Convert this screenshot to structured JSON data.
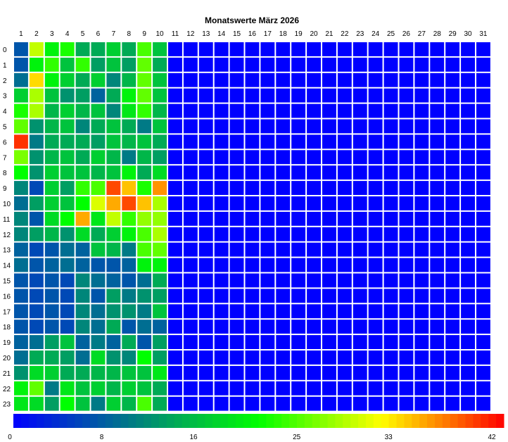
{
  "chart_data": {
    "type": "heatmap",
    "title": "Monatswerte März 2026",
    "x_categories": [
      "1",
      "2",
      "3",
      "4",
      "5",
      "6",
      "7",
      "8",
      "9",
      "10",
      "11",
      "12",
      "13",
      "14",
      "15",
      "16",
      "17",
      "18",
      "19",
      "20",
      "21",
      "22",
      "23",
      "24",
      "25",
      "26",
      "27",
      "28",
      "29",
      "30",
      "31"
    ],
    "y_categories": [
      "0",
      "1",
      "2",
      "3",
      "4",
      "5",
      "6",
      "7",
      "8",
      "9",
      "10",
      "11",
      "12",
      "13",
      "14",
      "15",
      "16",
      "17",
      "18",
      "19",
      "20",
      "21",
      "22",
      "23"
    ],
    "value_range": [
      0,
      42
    ],
    "colorbar_ticks": [
      0,
      8,
      16,
      25,
      33,
      42
    ],
    "colorscale": [
      "#0000ff",
      "#008080",
      "#00ff00",
      "#ffff00",
      "#ff0000"
    ],
    "grid": true,
    "values": [
      [
        7,
        29,
        20,
        22,
        14,
        14,
        17,
        14,
        24,
        16,
        0,
        0,
        0,
        0,
        0,
        0,
        0,
        0,
        0,
        0,
        0,
        0,
        0,
        0,
        0,
        0,
        0,
        0,
        0,
        0,
        0
      ],
      [
        7,
        20,
        23,
        16,
        23,
        13,
        16,
        13,
        25,
        14,
        0,
        0,
        0,
        0,
        0,
        0,
        0,
        0,
        0,
        0,
        0,
        0,
        0,
        0,
        0,
        0,
        0,
        0,
        0,
        0,
        0
      ],
      [
        9,
        33,
        20,
        17,
        14,
        17,
        11,
        15,
        25,
        16,
        0,
        0,
        0,
        0,
        0,
        0,
        0,
        0,
        0,
        0,
        0,
        0,
        0,
        0,
        0,
        0,
        0,
        0,
        0,
        0,
        0
      ],
      [
        17,
        28,
        16,
        12,
        13,
        8,
        14,
        20,
        25,
        16,
        0,
        0,
        0,
        0,
        0,
        0,
        0,
        0,
        0,
        0,
        0,
        0,
        0,
        0,
        0,
        0,
        0,
        0,
        0,
        0,
        0
      ],
      [
        22,
        28,
        15,
        17,
        15,
        16,
        11,
        19,
        23,
        15,
        0,
        0,
        0,
        0,
        0,
        0,
        0,
        0,
        0,
        0,
        0,
        0,
        0,
        0,
        0,
        0,
        0,
        0,
        0,
        0,
        0
      ],
      [
        25,
        12,
        15,
        16,
        11,
        14,
        16,
        14,
        10,
        16,
        0,
        0,
        0,
        0,
        0,
        0,
        0,
        0,
        0,
        0,
        0,
        0,
        0,
        0,
        0,
        0,
        0,
        0,
        0,
        0,
        0
      ],
      [
        40,
        10,
        14,
        14,
        14,
        13,
        16,
        15,
        16,
        14,
        0,
        0,
        0,
        0,
        0,
        0,
        0,
        0,
        0,
        0,
        0,
        0,
        0,
        0,
        0,
        0,
        0,
        0,
        0,
        0,
        0
      ],
      [
        26,
        12,
        15,
        16,
        14,
        17,
        15,
        10,
        15,
        13,
        0,
        0,
        0,
        0,
        0,
        0,
        0,
        0,
        0,
        0,
        0,
        0,
        0,
        0,
        0,
        0,
        0,
        0,
        0,
        0,
        0
      ],
      [
        21,
        12,
        17,
        16,
        16,
        15,
        16,
        20,
        14,
        18,
        0,
        0,
        0,
        0,
        0,
        0,
        0,
        0,
        0,
        0,
        0,
        0,
        0,
        0,
        0,
        0,
        0,
        0,
        0,
        0,
        0
      ],
      [
        11,
        6,
        17,
        13,
        23,
        24,
        39,
        34,
        22,
        36,
        0,
        0,
        0,
        0,
        0,
        0,
        0,
        0,
        0,
        0,
        0,
        0,
        0,
        0,
        0,
        0,
        0,
        0,
        0,
        0,
        0
      ],
      [
        9,
        13,
        17,
        16,
        21,
        30,
        35,
        39,
        34,
        28,
        0,
        0,
        0,
        0,
        0,
        0,
        0,
        0,
        0,
        0,
        0,
        0,
        0,
        0,
        0,
        0,
        0,
        0,
        0,
        0,
        0
      ],
      [
        11,
        7,
        18,
        21,
        35,
        19,
        29,
        23,
        27,
        27,
        0,
        0,
        0,
        0,
        0,
        0,
        0,
        0,
        0,
        0,
        0,
        0,
        0,
        0,
        0,
        0,
        0,
        0,
        0,
        0,
        0
      ],
      [
        11,
        13,
        15,
        12,
        18,
        14,
        17,
        20,
        24,
        28,
        0,
        0,
        0,
        0,
        0,
        0,
        0,
        0,
        0,
        0,
        0,
        0,
        0,
        0,
        0,
        0,
        0,
        0,
        0,
        0,
        0
      ],
      [
        8,
        6,
        7,
        9,
        8,
        16,
        15,
        10,
        24,
        25,
        0,
        0,
        0,
        0,
        0,
        0,
        0,
        0,
        0,
        0,
        0,
        0,
        0,
        0,
        0,
        0,
        0,
        0,
        0,
        0,
        0
      ],
      [
        9,
        7,
        8,
        9,
        8,
        7,
        7,
        8,
        20,
        20,
        0,
        0,
        0,
        0,
        0,
        0,
        0,
        0,
        0,
        0,
        0,
        0,
        0,
        0,
        0,
        0,
        0,
        0,
        0,
        0,
        0
      ],
      [
        7,
        6,
        7,
        6,
        11,
        9,
        8,
        7,
        9,
        14,
        0,
        0,
        0,
        0,
        0,
        0,
        0,
        0,
        0,
        0,
        0,
        0,
        0,
        0,
        0,
        0,
        0,
        0,
        0,
        0,
        0
      ],
      [
        7,
        6,
        7,
        6,
        11,
        7,
        13,
        10,
        12,
        13,
        0,
        0,
        0,
        0,
        0,
        0,
        0,
        0,
        0,
        0,
        0,
        0,
        0,
        0,
        0,
        0,
        0,
        0,
        0,
        0,
        0
      ],
      [
        7,
        6,
        7,
        6,
        11,
        9,
        12,
        12,
        10,
        16,
        0,
        0,
        0,
        0,
        0,
        0,
        0,
        0,
        0,
        0,
        0,
        0,
        0,
        0,
        0,
        0,
        0,
        0,
        0,
        0,
        0
      ],
      [
        7,
        6,
        7,
        6,
        11,
        9,
        14,
        7,
        9,
        8,
        0,
        0,
        0,
        0,
        0,
        0,
        0,
        0,
        0,
        0,
        0,
        0,
        0,
        0,
        0,
        0,
        0,
        0,
        0,
        0,
        0
      ],
      [
        8,
        9,
        13,
        16,
        8,
        10,
        8,
        14,
        7,
        13,
        0,
        0,
        0,
        0,
        0,
        0,
        0,
        0,
        0,
        0,
        0,
        0,
        0,
        0,
        0,
        0,
        0,
        0,
        0,
        0,
        0
      ],
      [
        9,
        14,
        14,
        13,
        9,
        18,
        12,
        11,
        21,
        13,
        0,
        0,
        0,
        0,
        0,
        0,
        0,
        0,
        0,
        0,
        0,
        0,
        0,
        0,
        0,
        0,
        0,
        0,
        0,
        0,
        0
      ],
      [
        12,
        18,
        17,
        14,
        14,
        15,
        15,
        16,
        16,
        19,
        0,
        0,
        0,
        0,
        0,
        0,
        0,
        0,
        0,
        0,
        0,
        0,
        0,
        0,
        0,
        0,
        0,
        0,
        0,
        0,
        0
      ],
      [
        20,
        25,
        10,
        19,
        16,
        17,
        15,
        17,
        16,
        14,
        0,
        0,
        0,
        0,
        0,
        0,
        0,
        0,
        0,
        0,
        0,
        0,
        0,
        0,
        0,
        0,
        0,
        0,
        0,
        0,
        0
      ],
      [
        19,
        18,
        13,
        21,
        16,
        10,
        17,
        15,
        24,
        14,
        0,
        0,
        0,
        0,
        0,
        0,
        0,
        0,
        0,
        0,
        0,
        0,
        0,
        0,
        0,
        0,
        0,
        0,
        0,
        0,
        0
      ]
    ]
  }
}
